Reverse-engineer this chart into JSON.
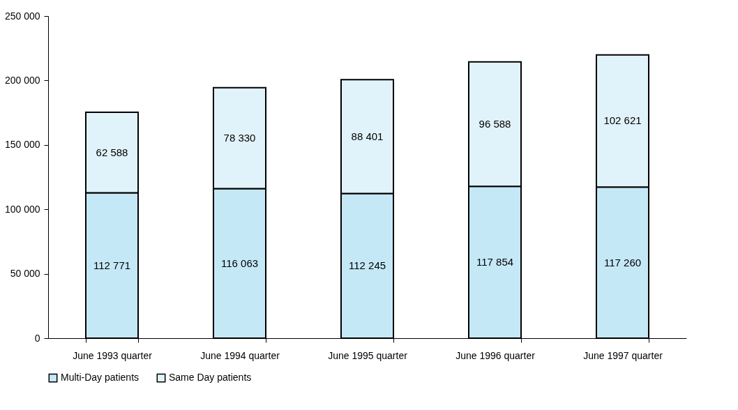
{
  "chart_data": {
    "type": "bar",
    "stacked": true,
    "categories": [
      "June 1993 quarter",
      "June 1994 quarter",
      "June 1995 quarter",
      "June 1996 quarter",
      "June 1997 quarter"
    ],
    "series": [
      {
        "name": "Multi-Day patients",
        "color": "#c5e8f7",
        "values": [
          112771,
          116063,
          112245,
          117854,
          117260
        ],
        "value_labels": [
          "112 771",
          "116 063",
          "112 245",
          "117 854",
          "117 260"
        ]
      },
      {
        "name": "Same Day patients",
        "color": "#e1f3fa",
        "values": [
          62588,
          78330,
          88401,
          96588,
          102621
        ],
        "value_labels": [
          "62 588",
          "78 330",
          "88 401",
          "96 588",
          "102 621"
        ]
      }
    ],
    "ylim": [
      0,
      250000
    ],
    "yticks": [
      {
        "value": 0,
        "label": "0"
      },
      {
        "value": 50000,
        "label": "50 000"
      },
      {
        "value": 100000,
        "label": "100 000"
      },
      {
        "value": 150000,
        "label": "150 000"
      },
      {
        "value": 200000,
        "label": "200 000"
      },
      {
        "value": 250000,
        "label": "250 000"
      }
    ],
    "grid": false,
    "legend": "bottom"
  }
}
